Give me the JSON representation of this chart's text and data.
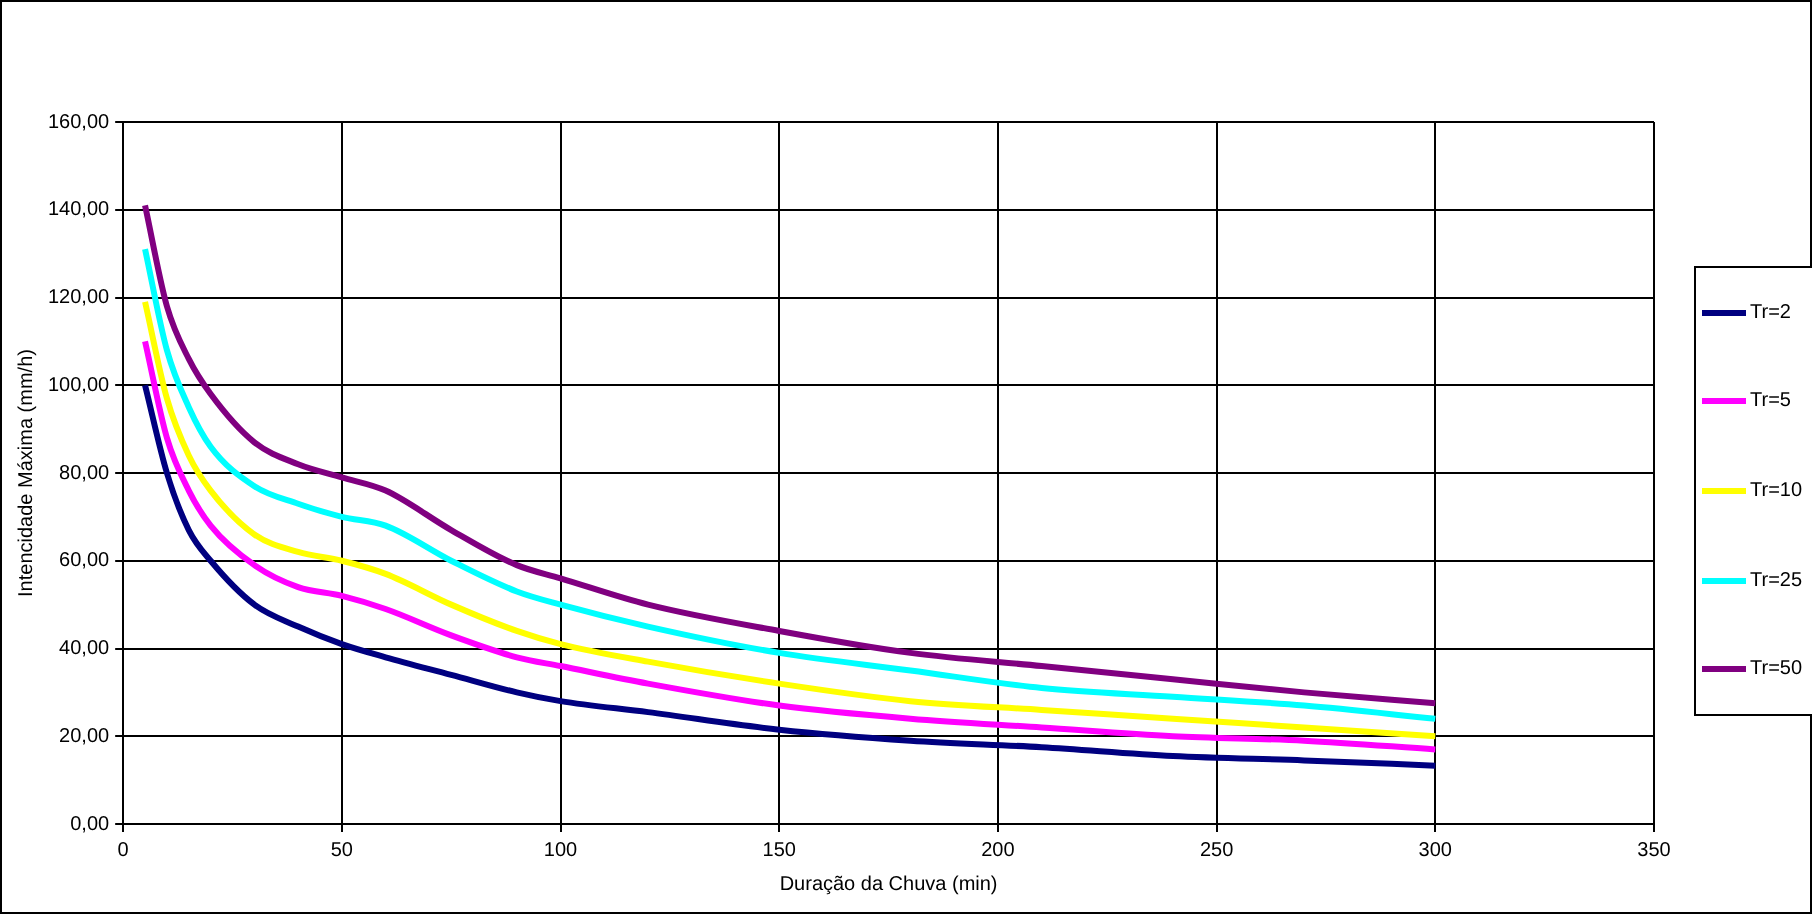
{
  "chart_data": {
    "type": "line",
    "xlabel": "Duração da Chuva (min)",
    "ylabel": "Intencidade Máxima (mm/h)",
    "x": [
      5,
      10,
      15,
      20,
      30,
      40,
      50,
      60,
      75,
      90,
      100,
      120,
      150,
      180,
      210,
      240,
      270,
      300
    ],
    "series": [
      {
        "name": "Tr=2",
        "color": "#000080",
        "values": [
          100,
          80,
          67,
          60,
          50,
          45,
          41,
          38,
          34,
          30,
          28,
          25.5,
          21.5,
          19,
          17.5,
          15.5,
          14.5,
          13.3
        ]
      },
      {
        "name": "Tr=5",
        "color": "#ff00ff",
        "values": [
          110,
          88,
          76,
          68,
          59,
          54,
          52,
          49,
          43,
          38,
          36,
          32,
          27,
          24,
          22,
          20,
          19,
          17
        ]
      },
      {
        "name": "Tr=10",
        "color": "#ffff00",
        "values": [
          119,
          97,
          84,
          76,
          66,
          62,
          60,
          57,
          50,
          44,
          41,
          37,
          32,
          28,
          26,
          24,
          22,
          20
        ]
      },
      {
        "name": "Tr=25",
        "color": "#00ffff",
        "values": [
          131,
          108,
          95,
          86,
          77,
          73,
          70,
          68,
          60,
          53,
          50,
          45,
          39,
          35,
          31,
          29,
          27,
          24
        ]
      },
      {
        "name": "Tr=50",
        "color": "#800080",
        "values": [
          141,
          118,
          106,
          98,
          87,
          82,
          79,
          76,
          67,
          59,
          56,
          50,
          44,
          39,
          36,
          33,
          30,
          27.5
        ]
      }
    ],
    "xlim": [
      0,
      350
    ],
    "xticks": [
      0,
      50,
      100,
      150,
      200,
      250,
      300,
      350
    ],
    "ylim": [
      0,
      160
    ],
    "yticks": [
      {
        "value": 0,
        "label": "0,00"
      },
      {
        "value": 20,
        "label": "20,00"
      },
      {
        "value": 40,
        "label": "40,00"
      },
      {
        "value": 60,
        "label": "60,00"
      },
      {
        "value": 80,
        "label": "80,00"
      },
      {
        "value": 100,
        "label": "100,00"
      },
      {
        "value": 120,
        "label": "120,00"
      },
      {
        "value": 140,
        "label": "140,00"
      },
      {
        "value": 160,
        "label": "160,00"
      }
    ],
    "grid": true,
    "legend": "right",
    "marker": "none",
    "line_style": "solid"
  }
}
